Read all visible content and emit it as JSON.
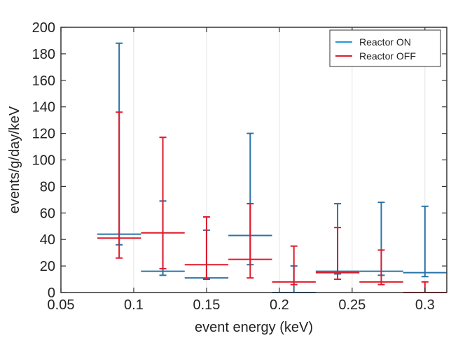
{
  "chart_data": {
    "type": "scatter",
    "title": "",
    "xlabel": "event energy (keV)",
    "ylabel": "events/g/day/keV",
    "xlim": [
      0.05,
      0.315
    ],
    "ylim": [
      0,
      200
    ],
    "xticks": [
      0.05,
      0.1,
      0.15,
      0.2,
      0.25,
      0.3
    ],
    "xtick_labels": [
      "0.05",
      "0.1",
      "0.15",
      "0.2",
      "0.25",
      "0.3"
    ],
    "yticks": [
      0,
      20,
      40,
      60,
      80,
      100,
      120,
      140,
      160,
      180,
      200
    ],
    "ytick_labels": [
      "0",
      "20",
      "40",
      "60",
      "80",
      "100",
      "120",
      "140",
      "160",
      "180",
      "200"
    ],
    "bin_width": 0.03,
    "legend_position": "top-right",
    "series": [
      {
        "name": "Reactor ON",
        "color": "#2a73a8",
        "legend_color": "#1f9be0",
        "x": [
          0.09,
          0.12,
          0.15,
          0.18,
          0.21,
          0.24,
          0.27,
          0.3
        ],
        "values": [
          44,
          16,
          11,
          43,
          0,
          16,
          16,
          15
        ],
        "err_low": [
          36,
          13,
          10,
          21,
          0,
          14,
          13,
          12
        ],
        "err_high": [
          188,
          69,
          47,
          120,
          20,
          67,
          68,
          65
        ]
      },
      {
        "name": "Reactor OFF",
        "color": "#e01b2b",
        "legend_color": "#e01b2b",
        "x": [
          0.09,
          0.12,
          0.15,
          0.18,
          0.21,
          0.24,
          0.27,
          0.3
        ],
        "values": [
          41,
          45,
          21,
          25,
          8,
          15,
          8,
          0
        ],
        "err_low": [
          26,
          18,
          10,
          11,
          6,
          10,
          6,
          0
        ],
        "err_high": [
          136,
          117,
          57,
          67,
          35,
          49,
          32,
          8
        ]
      }
    ]
  }
}
